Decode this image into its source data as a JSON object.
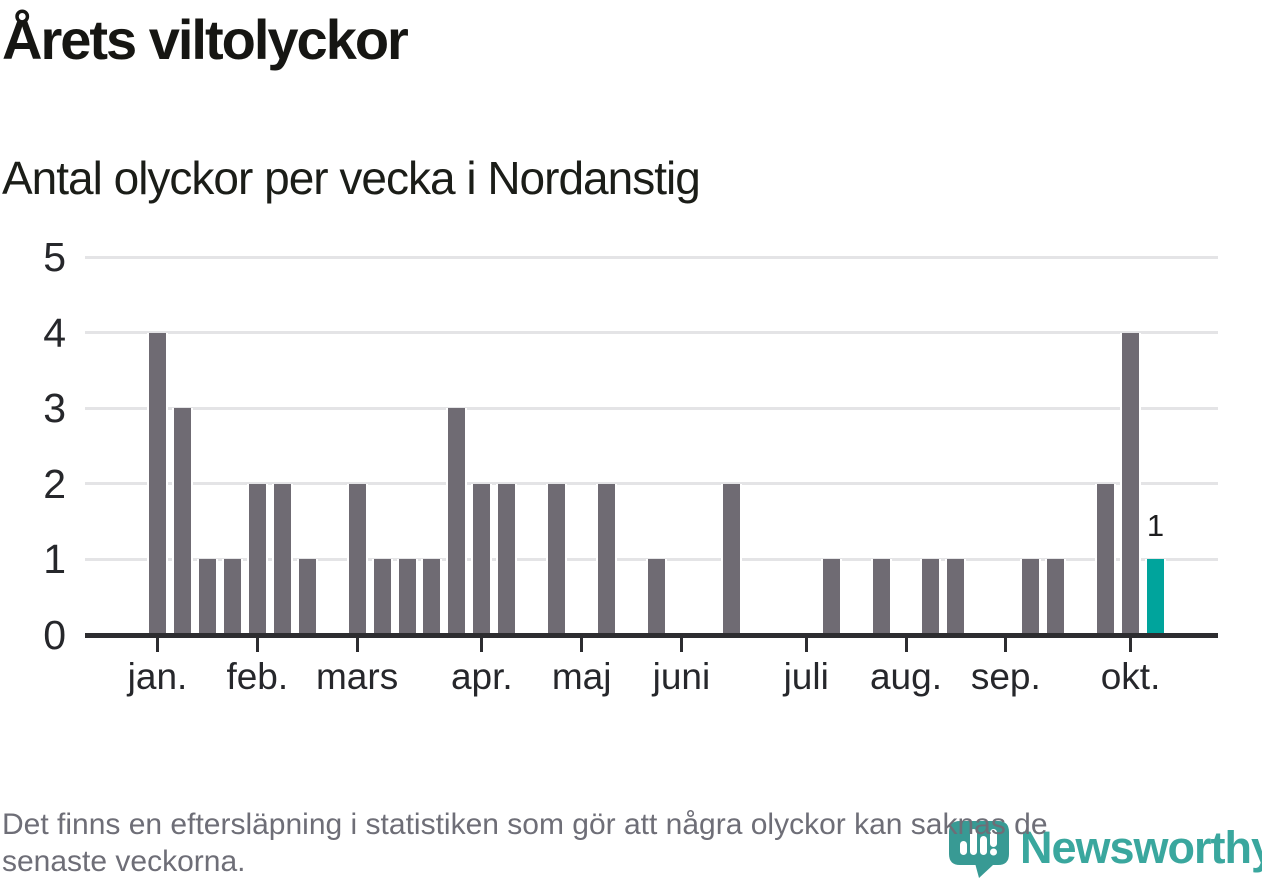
{
  "chart_data": {
    "type": "bar",
    "title": "Årets viltolyckor",
    "subtitle": "Antal olyckor per vecka i Nordanstig",
    "x_unit": "vecka",
    "first_week": 1,
    "values": [
      4,
      3,
      1,
      1,
      2,
      2,
      1,
      0,
      2,
      1,
      1,
      1,
      3,
      2,
      2,
      0,
      2,
      0,
      2,
      0,
      1,
      0,
      0,
      2,
      0,
      0,
      0,
      1,
      0,
      1,
      0,
      1,
      1,
      0,
      0,
      1,
      1,
      0,
      2,
      4,
      1
    ],
    "highlight": {
      "week": 41,
      "value": 1,
      "label": "1"
    },
    "y_ticks": [
      0,
      1,
      2,
      3,
      4,
      5
    ],
    "ylim": [
      0,
      5
    ],
    "grid": true,
    "legend": "none",
    "month_ticks": [
      {
        "label": "jan.",
        "week": 1
      },
      {
        "label": "feb.",
        "week": 5
      },
      {
        "label": "mars",
        "week": 9
      },
      {
        "label": "apr.",
        "week": 14
      },
      {
        "label": "maj",
        "week": 18
      },
      {
        "label": "juni",
        "week": 22
      },
      {
        "label": "juli",
        "week": 27
      },
      {
        "label": "aug.",
        "week": 31
      },
      {
        "label": "sep.",
        "week": 35
      },
      {
        "label": "okt.",
        "week": 40
      }
    ],
    "colors": {
      "bar": "#6f6b73",
      "highlight": "#00a49c"
    }
  },
  "footer": {
    "note_line1": "Det finns en eftersläpning i statistiken som gör att några olyckor kan saknas de",
    "note_line2": "senaste veckorna."
  },
  "logo": {
    "wordmark": "Newsworthy",
    "icon": "newsworthy-speech-bubble-chart-icon",
    "wordmark_color": "#3aa79e",
    "icon_color": "#389a94"
  }
}
